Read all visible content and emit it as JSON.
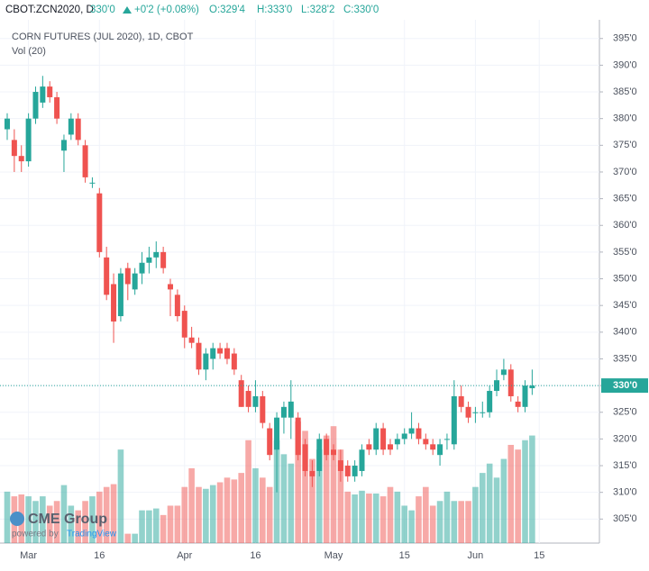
{
  "header": {
    "symbol": "CBOT:ZCN2020, D",
    "last": "330'0",
    "change": "+0'2 (+0.08%)",
    "open": "O:329'4",
    "high": "H:333'0",
    "low": "L:328'2",
    "close": "C:330'0"
  },
  "logo": {
    "brand": "CME Group",
    "powered": "powered by",
    "platform": "TradingView"
  },
  "chart_data": {
    "type": "candlestick",
    "title": "CORN FUTURES (JUL 2020), 1D, CBOT",
    "subtitle": "Vol (20)",
    "categories": [
      null,
      null,
      null,
      "Mar",
      null,
      null,
      null,
      null,
      null,
      null,
      null,
      null,
      null,
      "16",
      null,
      null,
      null,
      null,
      null,
      null,
      null,
      null,
      null,
      null,
      null,
      "Apr",
      null,
      null,
      null,
      null,
      null,
      null,
      null,
      null,
      null,
      "16",
      null,
      null,
      null,
      null,
      null,
      null,
      null,
      null,
      null,
      null,
      "May",
      null,
      null,
      null,
      null,
      null,
      null,
      null,
      null,
      null,
      "15",
      null,
      null,
      null,
      null,
      null,
      null,
      null,
      null,
      null,
      "Jun",
      null,
      null,
      null,
      null,
      null,
      null,
      null,
      null,
      "15"
    ],
    "open": [
      378,
      376,
      373,
      372,
      380,
      383,
      386,
      384,
      374,
      377,
      380,
      375,
      368,
      366,
      354,
      349,
      343,
      352,
      348,
      351,
      353,
      354,
      355,
      349,
      347,
      344,
      339,
      338,
      333,
      335,
      337,
      337,
      336,
      331,
      329,
      326,
      328,
      322,
      318,
      324,
      324,
      324,
      319,
      314,
      314,
      320,
      318,
      316,
      315,
      313,
      314,
      319,
      318,
      322,
      319,
      319,
      320,
      321,
      322,
      320,
      319,
      317,
      320,
      319,
      328,
      326,
      325,
      325,
      325,
      329,
      332,
      333,
      327,
      326,
      329.5,
      null
    ],
    "high": [
      381,
      378,
      375,
      381,
      386,
      388,
      387,
      385,
      377,
      381,
      381,
      376,
      369,
      367,
      356,
      351,
      352,
      353,
      352,
      355,
      356,
      357,
      356,
      350,
      348,
      345,
      341,
      339,
      337,
      338,
      338,
      338,
      337,
      332,
      330,
      331,
      329,
      323,
      325,
      327,
      331,
      325,
      320,
      316,
      321,
      321,
      319,
      318,
      316,
      316,
      319,
      320,
      323,
      323,
      320,
      321,
      322,
      325,
      323,
      321,
      320,
      320,
      321,
      331,
      330,
      327,
      326,
      327,
      330,
      333,
      335,
      334,
      328,
      331,
      333,
      null
    ],
    "low": [
      376,
      370,
      370,
      371,
      379,
      382,
      383,
      379,
      370,
      376,
      375,
      368,
      367,
      354,
      346,
      338,
      342,
      346,
      347,
      349,
      351,
      352,
      351,
      343,
      342,
      337,
      337,
      332,
      331,
      333,
      335,
      334,
      332,
      326,
      325,
      325,
      322,
      316,
      310,
      321,
      320,
      316,
      313,
      311,
      313,
      316,
      316,
      312,
      312,
      312,
      313,
      317,
      317,
      317,
      317,
      318,
      319,
      320,
      319,
      318,
      317,
      315,
      318,
      318,
      325,
      323,
      323,
      324,
      324,
      328,
      331,
      327,
      325,
      325,
      328.25,
      null
    ],
    "close": [
      380,
      373,
      372,
      380,
      385,
      386,
      384,
      380,
      376,
      380,
      376,
      369,
      368,
      355,
      347,
      342,
      351,
      349,
      351,
      353,
      354,
      355,
      352,
      348,
      343,
      339,
      338,
      333,
      336,
      337,
      336,
      335,
      333,
      326,
      326,
      328,
      323,
      317,
      324,
      326,
      327,
      317,
      314,
      313,
      320,
      317,
      317,
      314,
      313,
      315,
      318,
      318,
      322,
      318,
      318,
      320,
      321,
      322,
      320,
      319,
      318,
      319,
      320,
      328,
      326,
      324,
      325,
      325,
      329,
      331,
      333,
      328,
      326,
      330,
      330,
      null
    ],
    "volume": [
      55,
      50,
      52,
      50,
      45,
      50,
      40,
      45,
      62,
      40,
      35,
      45,
      50,
      55,
      60,
      63,
      100,
      10,
      10,
      35,
      35,
      37,
      30,
      40,
      40,
      60,
      80,
      60,
      58,
      62,
      65,
      70,
      68,
      75,
      110,
      80,
      70,
      60,
      110,
      95,
      85,
      130,
      120,
      90,
      100,
      115,
      125,
      100,
      55,
      52,
      56,
      53,
      53,
      50,
      60,
      55,
      40,
      35,
      50,
      60,
      40,
      45,
      55,
      45,
      45,
      45,
      60,
      75,
      85,
      70,
      90,
      105,
      100,
      110,
      115,
      null
    ],
    "up_color": "#26a69a",
    "down_color": "#ef5350",
    "ylim": [
      300.5,
      398.5
    ],
    "yticks": [
      {
        "value": 305,
        "label": "305'0"
      },
      {
        "value": 310,
        "label": "310'0"
      },
      {
        "value": 315,
        "label": "315'0"
      },
      {
        "value": 320,
        "label": "320'0"
      },
      {
        "value": 325,
        "label": "325'0"
      },
      {
        "value": 330,
        "label": "330'0"
      },
      {
        "value": 335,
        "label": "335'0"
      },
      {
        "value": 340,
        "label": "340'0"
      },
      {
        "value": 345,
        "label": "345'0"
      },
      {
        "value": 350,
        "label": "350'0"
      },
      {
        "value": 355,
        "label": "355'0"
      },
      {
        "value": 360,
        "label": "360'0"
      },
      {
        "value": 365,
        "label": "365'0"
      },
      {
        "value": 370,
        "label": "370'0"
      },
      {
        "value": 375,
        "label": "375'0"
      },
      {
        "value": 380,
        "label": "380'0"
      },
      {
        "value": 385,
        "label": "385'0"
      },
      {
        "value": 390,
        "label": "390'0"
      },
      {
        "value": 395,
        "label": "395'0"
      }
    ],
    "last_price": {
      "value": 330,
      "label": "330'0"
    },
    "grid": true
  }
}
